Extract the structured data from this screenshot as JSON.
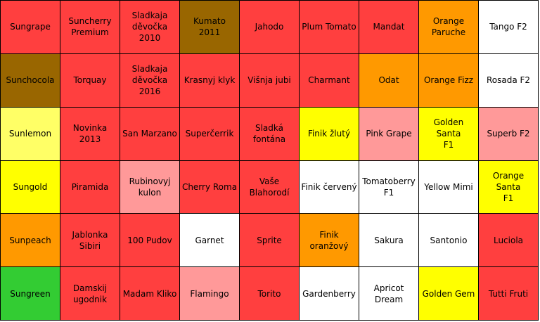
{
  "colors": {
    "red": "#FF3F3F",
    "orange": "#FF9900",
    "brown": "#996600",
    "light_yellow": "#FFFF66",
    "yellow": "#FFFF00",
    "pink": "#FF9999",
    "green": "#33CC33",
    "white": "#FFFFFF"
  },
  "cells": [
    {
      "label": "Sungrape",
      "color": "red"
    },
    {
      "label": "Suncherry\nPremium",
      "color": "red"
    },
    {
      "label": "Sladkaja\nděvočka 2010",
      "color": "red"
    },
    {
      "label": "Kumato 2011",
      "color": "brown"
    },
    {
      "label": "Jahodo",
      "color": "red"
    },
    {
      "label": "Plum Tomato",
      "color": "red"
    },
    {
      "label": "Mandat",
      "color": "red"
    },
    {
      "label": "Orange\nParuche",
      "color": "orange"
    },
    {
      "label": "Tango F2",
      "color": "white"
    },
    {
      "label": "Sunchocola",
      "color": "brown"
    },
    {
      "label": "Torquay",
      "color": "red"
    },
    {
      "label": "Sladkaja\nděvočka 2016",
      "color": "red"
    },
    {
      "label": "Krasnyj klyk",
      "color": "red"
    },
    {
      "label": "Višnja jubi",
      "color": "red"
    },
    {
      "label": "Charmant",
      "color": "red"
    },
    {
      "label": "Odat",
      "color": "orange"
    },
    {
      "label": "Orange Fizz",
      "color": "orange"
    },
    {
      "label": "Rosada F2",
      "color": "white"
    },
    {
      "label": "Sunlemon",
      "color": "light_yellow"
    },
    {
      "label": "Novinka  2013",
      "color": "red"
    },
    {
      "label": "San Marzano",
      "color": "red"
    },
    {
      "label": "Superčerrik",
      "color": "red"
    },
    {
      "label": "Sladká\nfontána",
      "color": "red"
    },
    {
      "label": "Finik žlutý",
      "color": "yellow"
    },
    {
      "label": "Pink Grape",
      "color": "pink"
    },
    {
      "label": "Golden Santa\nF1",
      "color": "yellow"
    },
    {
      "label": "Superb F2",
      "color": "pink"
    },
    {
      "label": "Sungold",
      "color": "yellow"
    },
    {
      "label": "Piramida",
      "color": "red"
    },
    {
      "label": "Rubinovyj\nkulon",
      "color": "pink"
    },
    {
      "label": "Cherry Roma",
      "color": "red"
    },
    {
      "label": "Vaše\nBlahorodí",
      "color": "red"
    },
    {
      "label": "Finik červený",
      "color": "white"
    },
    {
      "label": "Tomatoberry\nF1",
      "color": "white"
    },
    {
      "label": "Yellow Mimi",
      "color": "white"
    },
    {
      "label": "Orange Santa\nF1",
      "color": "yellow"
    },
    {
      "label": "Sunpeach",
      "color": "orange"
    },
    {
      "label": "Jablonka\nSibiri",
      "color": "red"
    },
    {
      "label": "100 Pudov",
      "color": "red"
    },
    {
      "label": "Garnet",
      "color": "white"
    },
    {
      "label": "Sprite",
      "color": "red"
    },
    {
      "label": "Finik\noranžový",
      "color": "orange"
    },
    {
      "label": "Sakura",
      "color": "white"
    },
    {
      "label": "Santonio",
      "color": "white"
    },
    {
      "label": "Luciola",
      "color": "red"
    },
    {
      "label": "Sungreen",
      "color": "green"
    },
    {
      "label": "Damskij\nugodnik",
      "color": "red"
    },
    {
      "label": "Madam Kliko",
      "color": "red"
    },
    {
      "label": "Flamingo",
      "color": "pink"
    },
    {
      "label": "Torito",
      "color": "red"
    },
    {
      "label": "Gardenberry",
      "color": "white"
    },
    {
      "label": "Apricot\nDream",
      "color": "white"
    },
    {
      "label": "Golden Gem",
      "color": "yellow"
    },
    {
      "label": "Tutti Fruti",
      "color": "red"
    }
  ]
}
